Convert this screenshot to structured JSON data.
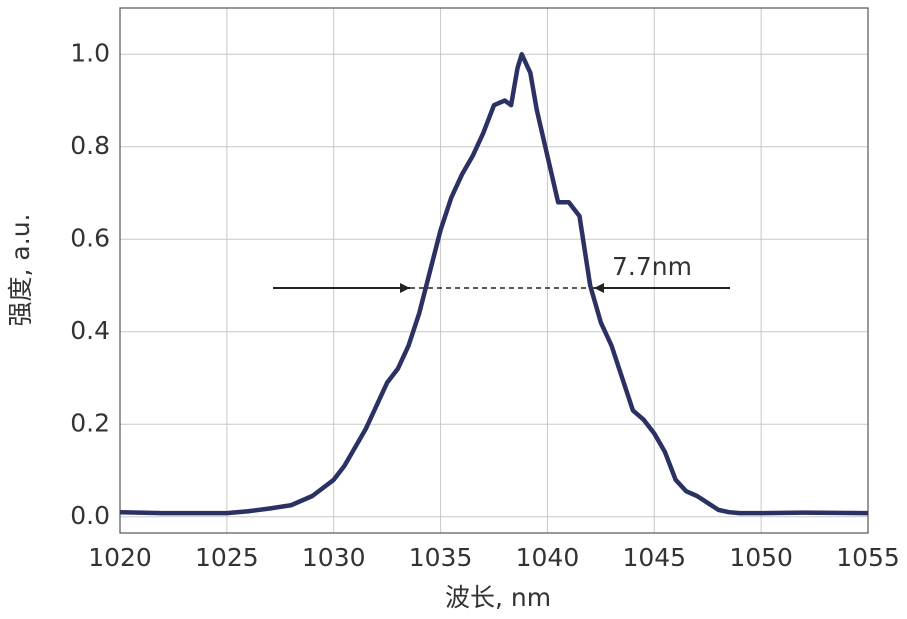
{
  "chart_data": {
    "type": "line",
    "x_label": "波长, nm",
    "y_label": "强度, a.u.",
    "annotation": "7.7nm",
    "series": [
      {
        "color": "#2b3162",
        "x": [
          1020,
          1022,
          1024,
          1025,
          1026,
          1027,
          1028,
          1029,
          1030,
          1030.5,
          1031,
          1031.5,
          1032,
          1032.5,
          1033,
          1033.5,
          1034,
          1034.5,
          1035,
          1035.5,
          1036,
          1036.5,
          1037,
          1037.5,
          1038,
          1038.3,
          1038.6,
          1038.8,
          1039.2,
          1039.5,
          1040,
          1040.5,
          1041,
          1041.5,
          1042,
          1042.5,
          1043,
          1043.5,
          1044,
          1044.5,
          1045,
          1045.5,
          1046,
          1046.5,
          1047,
          1047.5,
          1048,
          1048.5,
          1049,
          1050,
          1052,
          1055
        ],
        "values": [
          0.01,
          0.008,
          0.008,
          0.008,
          0.012,
          0.018,
          0.025,
          0.045,
          0.08,
          0.11,
          0.15,
          0.19,
          0.24,
          0.29,
          0.32,
          0.37,
          0.44,
          0.53,
          0.62,
          0.69,
          0.74,
          0.78,
          0.83,
          0.89,
          0.9,
          0.89,
          0.97,
          1.0,
          0.96,
          0.88,
          0.78,
          0.68,
          0.68,
          0.65,
          0.5,
          0.42,
          0.37,
          0.3,
          0.23,
          0.21,
          0.18,
          0.14,
          0.08,
          0.055,
          0.045,
          0.03,
          0.015,
          0.01,
          0.008,
          0.008,
          0.009,
          0.008
        ]
      }
    ],
    "xlim": [
      1020,
      1055
    ],
    "xticks": [
      1020,
      1025,
      1030,
      1035,
      1040,
      1045,
      1050,
      1055
    ],
    "ylim": [
      -0.035,
      1.1
    ],
    "yticks": [
      {
        "value": 0,
        "label": "0.0"
      },
      0.2,
      0.4,
      0.6,
      0.8,
      {
        "value": 1,
        "label": "1.0"
      }
    ],
    "grid": true
  }
}
